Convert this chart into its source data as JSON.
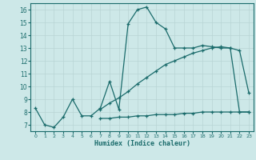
{
  "xlabel": "Humidex (Indice chaleur)",
  "bg_color": "#cde8e8",
  "grid_color": "#b8d4d4",
  "line_color": "#1a6b6b",
  "xlim": [
    -0.5,
    23.5
  ],
  "ylim": [
    6.5,
    16.5
  ],
  "xticks": [
    0,
    1,
    2,
    3,
    4,
    5,
    6,
    7,
    8,
    9,
    10,
    11,
    12,
    13,
    14,
    15,
    16,
    17,
    18,
    19,
    20,
    21,
    22,
    23
  ],
  "yticks": [
    7,
    8,
    9,
    10,
    11,
    12,
    13,
    14,
    15,
    16
  ],
  "line1_x": [
    0,
    1,
    2,
    3,
    4,
    5,
    6,
    7,
    8,
    9,
    10,
    11,
    12,
    13,
    14,
    15,
    16,
    17,
    18,
    19,
    20,
    21,
    22,
    23
  ],
  "line1_y": [
    8.3,
    7.0,
    6.8,
    7.6,
    9.0,
    7.7,
    7.7,
    8.3,
    10.4,
    8.2,
    14.9,
    16.0,
    16.2,
    15.0,
    14.5,
    13.0,
    13.0,
    13.0,
    13.2,
    13.1,
    13.0,
    13.0,
    12.8,
    9.5
  ],
  "line2_x": [
    7,
    8,
    9,
    10,
    11,
    12,
    13,
    14,
    15,
    16,
    17,
    18,
    19,
    20,
    21,
    22,
    23
  ],
  "line2_y": [
    7.5,
    7.5,
    7.6,
    7.6,
    7.7,
    7.7,
    7.8,
    7.8,
    7.8,
    7.9,
    7.9,
    8.0,
    8.0,
    8.0,
    8.0,
    8.0,
    8.0
  ],
  "line3_x": [
    7,
    8,
    9,
    10,
    11,
    12,
    13,
    14,
    15,
    16,
    17,
    18,
    19,
    20,
    21,
    22,
    23
  ],
  "line3_y": [
    8.2,
    8.7,
    9.1,
    9.6,
    10.2,
    10.7,
    11.2,
    11.7,
    12.0,
    12.3,
    12.6,
    12.8,
    13.0,
    13.1,
    13.0,
    8.0,
    8.0
  ]
}
